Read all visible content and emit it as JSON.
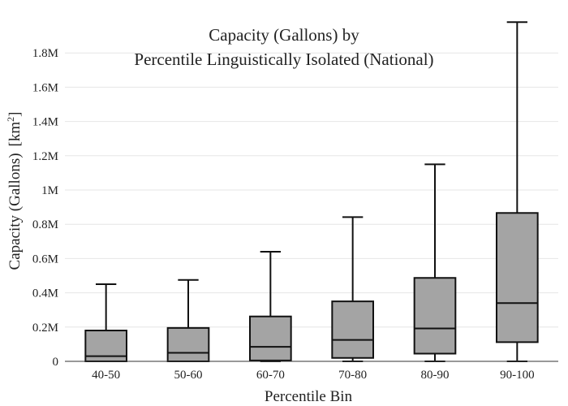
{
  "chart_data": {
    "type": "box",
    "title": "Capacity (Gallons) by\nPercentile Linguistically Isolated (National)",
    "xlabel": "Percentile Bin",
    "ylabel": "Capacity (Gallons)",
    "ylabel_units": "[km²]",
    "categories": [
      "40-50",
      "50-60",
      "60-70",
      "70-80",
      "80-90",
      "90-100"
    ],
    "boxes": [
      {
        "category": "40-50",
        "min": 0,
        "q1": 0,
        "median": 30000,
        "q3": 180000,
        "max": 450000
      },
      {
        "category": "50-60",
        "min": 0,
        "q1": 0,
        "median": 50000,
        "q3": 195000,
        "max": 475000
      },
      {
        "category": "60-70",
        "min": 0,
        "q1": 5000,
        "median": 85000,
        "q3": 262000,
        "max": 640000
      },
      {
        "category": "70-80",
        "min": 0,
        "q1": 20000,
        "median": 125000,
        "q3": 350000,
        "max": 842000
      },
      {
        "category": "80-90",
        "min": 0,
        "q1": 45000,
        "median": 192000,
        "q3": 487000,
        "max": 1150000
      },
      {
        "category": "90-100",
        "min": 0,
        "q1": 112000,
        "median": 340000,
        "q3": 866000,
        "max": 1980000
      }
    ],
    "ylim": [
      0,
      2000000
    ],
    "yticks": [
      0,
      200000,
      400000,
      600000,
      800000,
      1000000,
      1200000,
      1400000,
      1600000,
      1800000
    ],
    "ytick_labels": [
      "0",
      "0.2M",
      "0.4M",
      "0.6M",
      "0.8M",
      "1M",
      "1.2M",
      "1.4M",
      "1.6M",
      "1.8M"
    ],
    "grid": true,
    "box_fill": "#a4a4a4",
    "line_color": "#111111"
  }
}
